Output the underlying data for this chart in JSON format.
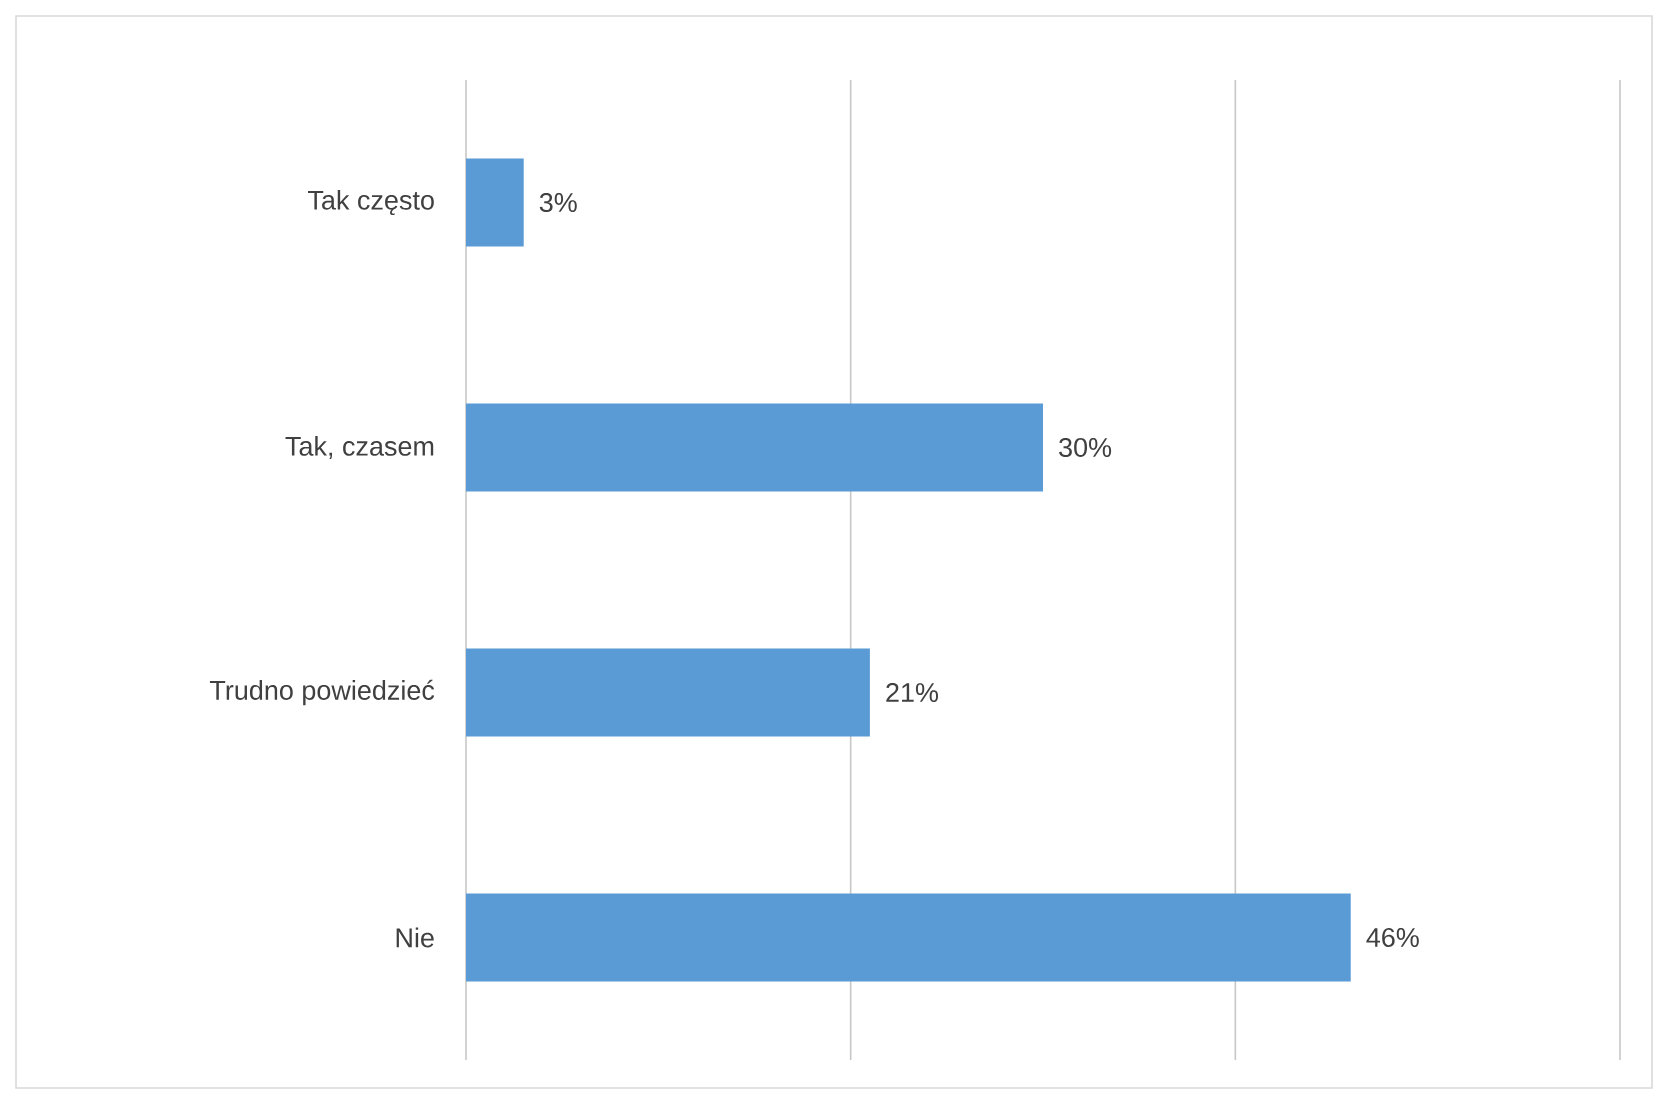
{
  "chart_data": {
    "type": "bar",
    "orientation": "horizontal",
    "categories": [
      "Tak często",
      "Tak, czasem",
      "Trudno powiedzieć",
      "Nie"
    ],
    "values": [
      3,
      30,
      21,
      46
    ],
    "value_labels": [
      "3%",
      "30%",
      "21%",
      "46%"
    ],
    "color": "#5b9bd5",
    "xlim": [
      0,
      60
    ],
    "xticks": [
      {
        "value": 0,
        "label": null
      },
      {
        "value": 20,
        "label": null
      },
      {
        "value": 40,
        "label": null
      },
      {
        "value": 60,
        "label": null
      }
    ],
    "tick_labels": "y",
    "grid": "x"
  }
}
